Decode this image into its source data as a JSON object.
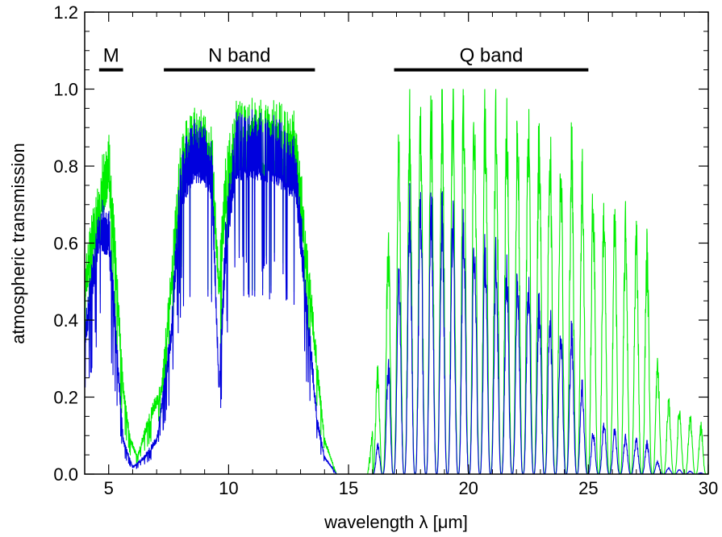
{
  "chart_data": {
    "type": "line",
    "xlabel": "wavelength λ [μm]",
    "ylabel": "atmospheric transmission",
    "xlim": [
      4,
      30
    ],
    "ylim": [
      0.0,
      1.2
    ],
    "x_ticks": [
      5,
      10,
      15,
      20,
      25,
      30
    ],
    "x_tick_labels": [
      "5",
      "10",
      "15",
      "20",
      "25",
      "30"
    ],
    "y_ticks": [
      0.0,
      0.2,
      0.4,
      0.6,
      0.8,
      1.0,
      1.2
    ],
    "y_tick_labels": [
      "0.0",
      "0.2",
      "0.4",
      "0.6",
      "0.8",
      "1.0",
      "1.2"
    ],
    "grid": false,
    "bands": [
      {
        "label": "M",
        "x_start": 4.6,
        "x_end": 5.6,
        "y": 1.05
      },
      {
        "label": "N band",
        "x_start": 7.3,
        "x_end": 13.6,
        "y": 1.05
      },
      {
        "label": "Q band",
        "x_start": 16.9,
        "x_end": 25.0,
        "y": 1.05
      }
    ],
    "series": [
      {
        "color": "#00ee00",
        "envelope": [
          [
            4.0,
            0.55
          ],
          [
            4.4,
            0.72
          ],
          [
            4.7,
            0.82
          ],
          [
            5.0,
            0.9
          ],
          [
            5.3,
            0.6
          ],
          [
            5.6,
            0.25
          ],
          [
            5.9,
            0.1
          ],
          [
            6.2,
            0.05
          ],
          [
            6.5,
            0.12
          ],
          [
            6.8,
            0.18
          ],
          [
            7.2,
            0.25
          ],
          [
            7.6,
            0.55
          ],
          [
            8.0,
            0.9
          ],
          [
            8.5,
            0.96
          ],
          [
            9.0,
            0.96
          ],
          [
            9.3,
            0.92
          ],
          [
            9.6,
            0.55
          ],
          [
            9.9,
            0.85
          ],
          [
            10.3,
            0.97
          ],
          [
            11.0,
            0.98
          ],
          [
            12.0,
            0.97
          ],
          [
            12.8,
            0.95
          ],
          [
            13.3,
            0.6
          ],
          [
            13.7,
            0.3
          ],
          [
            14.0,
            0.1
          ],
          [
            14.5,
            0.0
          ],
          [
            15.8,
            0.0
          ],
          [
            16.2,
            0.25
          ],
          [
            16.6,
            0.55
          ],
          [
            17.0,
            0.8
          ],
          [
            17.5,
            0.88
          ],
          [
            18.0,
            0.91
          ],
          [
            19.0,
            0.93
          ],
          [
            20.0,
            0.93
          ],
          [
            21.0,
            0.91
          ],
          [
            22.0,
            0.89
          ],
          [
            23.0,
            0.86
          ],
          [
            24.0,
            0.82
          ],
          [
            24.5,
            0.82
          ],
          [
            25.0,
            0.7
          ],
          [
            25.7,
            0.66
          ],
          [
            26.5,
            0.62
          ],
          [
            27.4,
            0.59
          ],
          [
            28.0,
            0.2
          ],
          [
            29.0,
            0.15
          ],
          [
            29.7,
            0.12
          ],
          [
            30.0,
            0.05
          ]
        ]
      },
      {
        "color": "#0000dd",
        "envelope": [
          [
            4.0,
            0.4
          ],
          [
            4.3,
            0.55
          ],
          [
            4.6,
            0.72
          ],
          [
            5.0,
            0.7
          ],
          [
            5.3,
            0.4
          ],
          [
            5.6,
            0.1
          ],
          [
            6.0,
            0.02
          ],
          [
            6.5,
            0.05
          ],
          [
            7.0,
            0.1
          ],
          [
            7.6,
            0.4
          ],
          [
            8.0,
            0.85
          ],
          [
            8.5,
            0.93
          ],
          [
            9.0,
            0.93
          ],
          [
            9.3,
            0.88
          ],
          [
            9.6,
            0.25
          ],
          [
            9.9,
            0.7
          ],
          [
            10.3,
            0.94
          ],
          [
            11.0,
            0.95
          ],
          [
            12.0,
            0.93
          ],
          [
            12.8,
            0.88
          ],
          [
            13.3,
            0.45
          ],
          [
            13.7,
            0.15
          ],
          [
            14.0,
            0.05
          ],
          [
            14.5,
            0.0
          ],
          [
            16.0,
            0.0
          ],
          [
            16.4,
            0.15
          ],
          [
            17.0,
            0.5
          ],
          [
            17.5,
            0.72
          ],
          [
            18.0,
            0.76
          ],
          [
            19.0,
            0.72
          ],
          [
            20.0,
            0.66
          ],
          [
            21.0,
            0.6
          ],
          [
            22.0,
            0.55
          ],
          [
            23.0,
            0.48
          ],
          [
            24.0,
            0.4
          ],
          [
            24.5,
            0.38
          ],
          [
            25.0,
            0.1
          ],
          [
            25.7,
            0.14
          ],
          [
            26.5,
            0.1
          ],
          [
            27.4,
            0.09
          ],
          [
            28.0,
            0.02
          ],
          [
            30.0,
            0.0
          ]
        ]
      }
    ]
  }
}
